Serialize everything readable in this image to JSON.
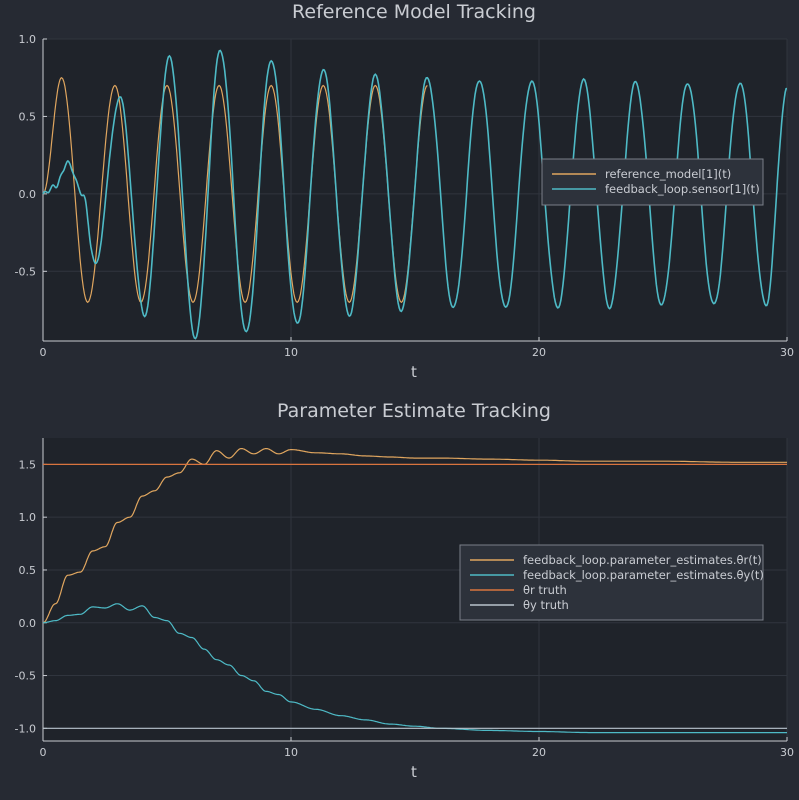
{
  "chart_data": [
    {
      "type": "line",
      "title": "Reference Model Tracking",
      "xlabel": "t",
      "ylabel": "",
      "xlim": [
        0,
        30
      ],
      "ylim": [
        -0.95,
        1.0
      ],
      "xticks": [
        0,
        10,
        20,
        30
      ],
      "yticks": [
        -0.5,
        0.0,
        0.5,
        1.0
      ],
      "ytick_labels": [
        "-0.5",
        "0.0",
        "0.5",
        "1.0"
      ],
      "grid": true,
      "legend": "right",
      "series": [
        {
          "name": "reference_model[1](t)",
          "color": "#e0a65f",
          "x": [
            0,
            0.75,
            1.8,
            2.9,
            3.95,
            5.0,
            6.05,
            7.1,
            8.15,
            9.2,
            10.25,
            11.3,
            12.35,
            13.4,
            14.45,
            15.5
          ],
          "y": [
            0,
            0.75,
            -0.7,
            0.7,
            -0.7,
            0.7,
            -0.7,
            0.7,
            -0.7,
            0.7,
            -0.7,
            0.7,
            -0.7,
            0.7,
            -0.7,
            0.7
          ]
        },
        {
          "name": "feedback_loop.sensor[1](t)",
          "color": "#4ebac6",
          "x": [
            0,
            0.5,
            1.0,
            1.6,
            2.1,
            3.1,
            4.1,
            5.1,
            6.15,
            7.15,
            8.2,
            9.2,
            10.25,
            11.3,
            12.35,
            13.4,
            14.45,
            15.5,
            16.55,
            17.6,
            18.65,
            19.7,
            20.75,
            21.8,
            22.85,
            23.9,
            24.95,
            26.0,
            27.05,
            28.1,
            29.15,
            30.0
          ],
          "y": [
            0,
            0.05,
            0.2,
            0.0,
            -0.45,
            0.62,
            -0.78,
            0.88,
            -0.93,
            0.93,
            -0.9,
            0.87,
            -0.84,
            0.8,
            -0.78,
            0.76,
            -0.75,
            0.75,
            -0.74,
            0.74,
            -0.74,
            0.73,
            -0.73,
            0.73,
            -0.73,
            0.72,
            -0.72,
            0.72,
            -0.72,
            0.72,
            -0.72,
            0.68
          ]
        }
      ]
    },
    {
      "type": "line",
      "title": "Parameter Estimate Tracking",
      "xlabel": "t",
      "ylabel": "",
      "xlim": [
        0,
        30
      ],
      "ylim": [
        -1.12,
        1.75
      ],
      "xticks": [
        0,
        10,
        20,
        30
      ],
      "yticks": [
        -1.0,
        -0.5,
        0.0,
        0.5,
        1.0,
        1.5
      ],
      "ytick_labels": [
        "-1.0",
        "-0.5",
        "0.0",
        "0.5",
        "1.0",
        "1.5"
      ],
      "grid": true,
      "legend": "right",
      "series": [
        {
          "name": "feedback_loop.parameter_estimates.θr(t)",
          "color": "#e0a65f",
          "x": [
            0,
            0.5,
            1.0,
            1.5,
            2.0,
            2.5,
            3.0,
            3.5,
            4.0,
            4.5,
            5.0,
            5.5,
            6.0,
            6.5,
            7.0,
            7.5,
            8.0,
            8.5,
            9.0,
            9.5,
            10.0,
            11.0,
            12.0,
            13.0,
            14.0,
            15.0,
            16.0,
            18.0,
            20.0,
            22.0,
            25.0,
            28.0,
            30.0
          ],
          "y": [
            0,
            0.18,
            0.45,
            0.48,
            0.68,
            0.72,
            0.95,
            1.0,
            1.2,
            1.25,
            1.38,
            1.42,
            1.55,
            1.5,
            1.63,
            1.56,
            1.65,
            1.6,
            1.65,
            1.6,
            1.64,
            1.61,
            1.6,
            1.58,
            1.57,
            1.56,
            1.56,
            1.55,
            1.54,
            1.53,
            1.53,
            1.52,
            1.52
          ]
        },
        {
          "name": "feedback_loop.parameter_estimates.θy(t)",
          "color": "#4ebac6",
          "x": [
            0,
            0.5,
            1.0,
            1.5,
            2.0,
            2.5,
            3.0,
            3.5,
            4.0,
            4.5,
            5.0,
            5.5,
            6.0,
            6.5,
            7.0,
            7.5,
            8.0,
            8.5,
            9.0,
            9.5,
            10.0,
            11.0,
            12.0,
            13.0,
            14.0,
            15.0,
            16.0,
            18.0,
            20.0,
            22.0,
            25.0,
            28.0,
            30.0
          ],
          "y": [
            0,
            0.02,
            0.07,
            0.08,
            0.15,
            0.14,
            0.18,
            0.12,
            0.16,
            0.05,
            0.02,
            -0.1,
            -0.14,
            -0.25,
            -0.35,
            -0.4,
            -0.5,
            -0.55,
            -0.65,
            -0.68,
            -0.75,
            -0.82,
            -0.88,
            -0.92,
            -0.96,
            -0.98,
            -1.0,
            -1.02,
            -1.03,
            -1.04,
            -1.04,
            -1.04,
            -1.04
          ]
        },
        {
          "name": "θr truth",
          "color": "#d9743e",
          "x": [
            0,
            30
          ],
          "y": [
            1.5,
            1.5
          ]
        },
        {
          "name": "θy truth",
          "color": "#b9c3cc",
          "x": [
            0,
            30
          ],
          "y": [
            -1.0,
            -1.0
          ]
        }
      ]
    }
  ]
}
